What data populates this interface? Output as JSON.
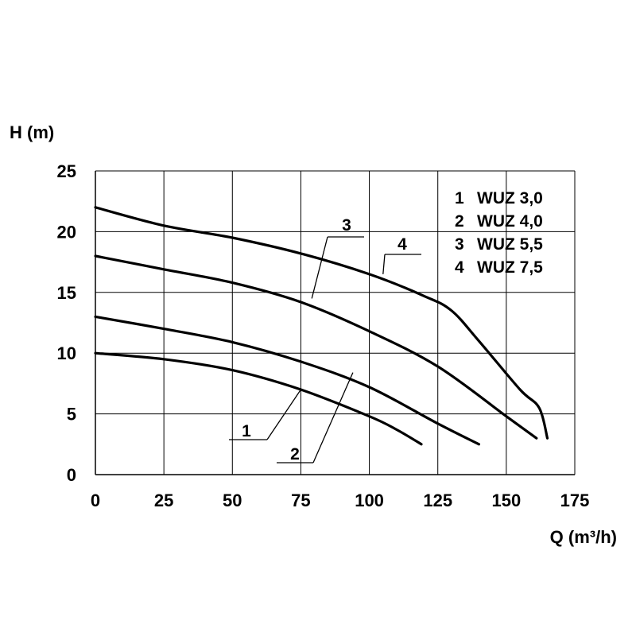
{
  "chart_data": {
    "type": "line",
    "ylabel": "H (m)",
    "xlabel": "Q (m³/h)",
    "xlim": [
      0,
      175
    ],
    "ylim": [
      0,
      25
    ],
    "xticks": [
      "0",
      "25",
      "50",
      "75",
      "100",
      "125",
      "150",
      "175"
    ],
    "yticks": [
      "0",
      "5",
      "10",
      "15",
      "20",
      "25"
    ],
    "grid": true,
    "legend_position": "top-right",
    "legend": [
      {
        "num": "1",
        "label": "WUZ 3,0"
      },
      {
        "num": "2",
        "label": "WUZ 4,0"
      },
      {
        "num": "3",
        "label": "WUZ 5,5"
      },
      {
        "num": "4",
        "label": "WUZ 7,5"
      }
    ],
    "series": [
      {
        "name": "1",
        "x": [
          0,
          25,
          50,
          75,
          100,
          110,
          119
        ],
        "y": [
          10,
          9.5,
          8.6,
          7.0,
          4.8,
          3.7,
          2.5
        ]
      },
      {
        "name": "2",
        "x": [
          0,
          25,
          50,
          75,
          100,
          125,
          140
        ],
        "y": [
          13,
          12,
          10.9,
          9.3,
          7.2,
          4.2,
          2.5
        ]
      },
      {
        "name": "3",
        "x": [
          0,
          25,
          50,
          75,
          100,
          125,
          150,
          161
        ],
        "y": [
          18,
          16.9,
          15.8,
          14.2,
          11.8,
          8.9,
          4.8,
          3.0
        ]
      },
      {
        "name": "4",
        "x": [
          0,
          25,
          50,
          75,
          100,
          120,
          130,
          140,
          155,
          162,
          165
        ],
        "y": [
          22,
          20.5,
          19.5,
          18.2,
          16.5,
          14.7,
          13.5,
          11.0,
          7.0,
          5.5,
          3.0
        ]
      }
    ],
    "callouts": [
      {
        "label": "1",
        "x": 75,
        "y": 7.0
      },
      {
        "label": "2",
        "x": 94,
        "y": 8.4
      },
      {
        "label": "3",
        "x": 79,
        "y": 14.5
      },
      {
        "label": "4",
        "x": 105,
        "y": 16.5
      }
    ]
  }
}
